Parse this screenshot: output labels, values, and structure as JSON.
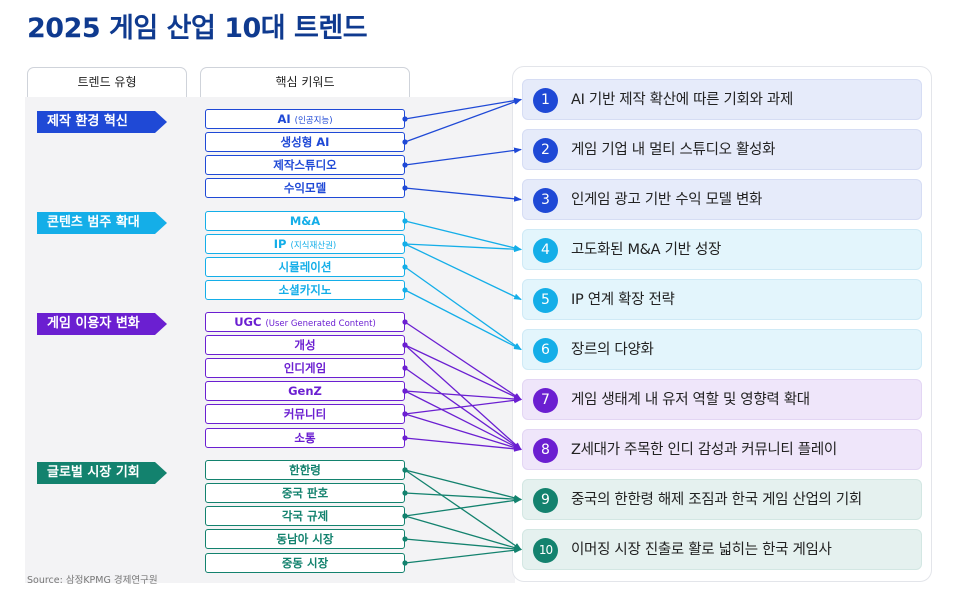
{
  "title": "2025 게임 산업 10대 트렌드",
  "headers": {
    "trend_type": "트렌드 유형",
    "keywords": "핵심 키워드"
  },
  "colors": {
    "blue": "#1f49d6",
    "cyan": "#14aee8",
    "purple": "#6b1fd1",
    "green": "#13826e",
    "title": "#0f3a8f"
  },
  "categories": [
    {
      "label": "제작 환경 혁신",
      "color": "#1f49d6"
    },
    {
      "label": "콘텐츠 범주 확대",
      "color": "#14aee8"
    },
    {
      "label": "게임 이용자 변화",
      "color": "#6b1fd1"
    },
    {
      "label": "글로벌 시장 기회",
      "color": "#13826e"
    }
  ],
  "keywords": [
    {
      "label": "AI",
      "sub": "(인공지능)",
      "category": 0
    },
    {
      "label": "생성형 AI",
      "sub": "",
      "category": 0
    },
    {
      "label": "제작스튜디오",
      "sub": "",
      "category": 0
    },
    {
      "label": "수익모델",
      "sub": "",
      "category": 0
    },
    {
      "label": "M&A",
      "sub": "",
      "category": 1
    },
    {
      "label": "IP",
      "sub": "(지식재산권)",
      "category": 1
    },
    {
      "label": "시뮬레이션",
      "sub": "",
      "category": 1
    },
    {
      "label": "소셜카지노",
      "sub": "",
      "category": 1
    },
    {
      "label": "UGC",
      "sub": "(User Generated Content)",
      "category": 2
    },
    {
      "label": "개성",
      "sub": "",
      "category": 2
    },
    {
      "label": "인디게임",
      "sub": "",
      "category": 2
    },
    {
      "label": "GenZ",
      "sub": "",
      "category": 2
    },
    {
      "label": "커뮤니티",
      "sub": "",
      "category": 2
    },
    {
      "label": "소통",
      "sub": "",
      "category": 2
    },
    {
      "label": "한한령",
      "sub": "",
      "category": 3
    },
    {
      "label": "중국 판호",
      "sub": "",
      "category": 3
    },
    {
      "label": "각국 규제",
      "sub": "",
      "category": 3
    },
    {
      "label": "동남아 시장",
      "sub": "",
      "category": 3
    },
    {
      "label": "중동 시장",
      "sub": "",
      "category": 3
    }
  ],
  "trends": [
    {
      "num": "1",
      "text": "AI 기반 제작 확산에 따른 기회와 과제"
    },
    {
      "num": "2",
      "text": "게임 기업 내 멀티 스튜디오 활성화"
    },
    {
      "num": "3",
      "text": "인게임 광고 기반 수익 모델 변화"
    },
    {
      "num": "4",
      "text": "고도화된 M&A 기반 성장"
    },
    {
      "num": "5",
      "text": "IP 연계 확장 전략"
    },
    {
      "num": "6",
      "text": "장르의 다양화"
    },
    {
      "num": "7",
      "text": "게임 생태계 내 유저 역할 및 영향력 확대"
    },
    {
      "num": "8",
      "text": "Z세대가 주목한 인디 감성과 커뮤니티 플레이"
    },
    {
      "num": "9",
      "text": "중국의 한한령 해제 조짐과 한국 게임 산업의 기회"
    },
    {
      "num": "10",
      "text": "이머징 시장 진출로 활로 넓히는 한국 게임사"
    }
  ],
  "connections": [
    [
      0,
      0
    ],
    [
      1,
      0
    ],
    [
      2,
      1
    ],
    [
      3,
      2
    ],
    [
      4,
      3
    ],
    [
      5,
      3
    ],
    [
      5,
      4
    ],
    [
      6,
      5
    ],
    [
      7,
      5
    ],
    [
      8,
      6
    ],
    [
      9,
      6
    ],
    [
      9,
      7
    ],
    [
      10,
      7
    ],
    [
      11,
      6
    ],
    [
      11,
      7
    ],
    [
      12,
      6
    ],
    [
      12,
      7
    ],
    [
      13,
      7
    ],
    [
      14,
      8
    ],
    [
      14,
      9
    ],
    [
      15,
      8
    ],
    [
      16,
      8
    ],
    [
      16,
      9
    ],
    [
      17,
      9
    ],
    [
      18,
      9
    ]
  ],
  "source": "Source: 삼정KPMG 경제연구원"
}
